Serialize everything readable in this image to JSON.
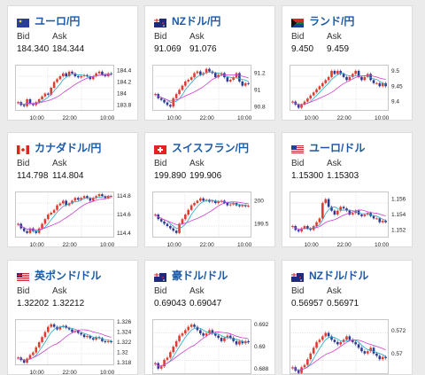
{
  "labels": {
    "bid": "Bid",
    "ask": "Ask"
  },
  "colors": {
    "title": "#1a5aa8",
    "up": "#e03c31",
    "down": "#2e3a8f",
    "ma_short": "#2aa6c4",
    "ma_long": "#cf3fcf",
    "grid": "#cfcfcf"
  },
  "cards": [
    {
      "title": "ユーロ/円",
      "flag": "eu-flag-icon",
      "bid": "184.340",
      "ask": "184.344",
      "chart_data": {
        "type": "candlestick",
        "x_ticks": [
          "10:00",
          "22:00",
          "10:00"
        ],
        "y_ticks": [
          "184.4",
          "184.2",
          "184",
          "183.8"
        ],
        "ylim": [
          183.7,
          184.5
        ],
        "close": [
          183.85,
          183.8,
          183.78,
          183.9,
          183.82,
          183.8,
          183.85,
          183.9,
          183.95,
          184.0,
          183.98,
          184.1,
          184.2,
          184.25,
          184.3,
          184.35,
          184.3,
          184.38,
          184.35,
          184.3,
          184.28,
          184.3,
          184.32,
          184.3,
          184.25,
          184.3,
          184.35,
          184.38,
          184.33,
          184.3,
          184.35,
          184.34
        ]
      }
    },
    {
      "title": "NZドル/円",
      "flag": "nz-flag-icon",
      "bid": "91.069",
      "ask": "91.076",
      "chart_data": {
        "type": "candlestick",
        "x_ticks": [
          "10:00",
          "22:00",
          "10:00"
        ],
        "y_ticks": [
          "91.2",
          "91",
          "90.8"
        ],
        "ylim": [
          90.75,
          91.3
        ],
        "close": [
          90.95,
          90.9,
          90.88,
          90.85,
          90.82,
          90.8,
          90.9,
          90.95,
          91.0,
          91.05,
          91.1,
          91.12,
          91.15,
          91.2,
          91.22,
          91.18,
          91.2,
          91.25,
          91.22,
          91.2,
          91.15,
          91.18,
          91.2,
          91.15,
          91.1,
          91.12,
          91.15,
          91.2,
          91.1,
          91.05,
          91.08,
          91.07
        ]
      }
    },
    {
      "title": "ランド/円",
      "flag": "za-flag-icon",
      "bid": "9.450",
      "ask": "9.459",
      "chart_data": {
        "type": "candlestick",
        "x_ticks": [
          "10:00",
          "22:00",
          "10:00"
        ],
        "y_ticks": [
          "9.5",
          "9.45",
          "9.4"
        ],
        "ylim": [
          9.37,
          9.52
        ],
        "close": [
          9.4,
          9.39,
          9.38,
          9.39,
          9.4,
          9.41,
          9.42,
          9.43,
          9.44,
          9.45,
          9.46,
          9.47,
          9.48,
          9.5,
          9.49,
          9.5,
          9.49,
          9.48,
          9.47,
          9.48,
          9.49,
          9.5,
          9.48,
          9.47,
          9.48,
          9.49,
          9.47,
          9.46,
          9.46,
          9.45,
          9.46,
          9.45
        ]
      }
    },
    {
      "title": "カナダドル/円",
      "flag": "ca-flag-icon",
      "bid": "114.798",
      "ask": "114.804",
      "chart_data": {
        "type": "candlestick",
        "x_ticks": [
          "10:00",
          "22:00",
          "10:00"
        ],
        "y_ticks": [
          "114.8",
          "114.6",
          "114.4"
        ],
        "ylim": [
          114.35,
          114.85
        ],
        "close": [
          114.5,
          114.45,
          114.42,
          114.4,
          114.45,
          114.42,
          114.4,
          114.45,
          114.5,
          114.55,
          114.6,
          114.62,
          114.65,
          114.7,
          114.72,
          114.75,
          114.7,
          114.72,
          114.75,
          114.78,
          114.76,
          114.78,
          114.8,
          114.78,
          114.75,
          114.78,
          114.8,
          114.82,
          114.8,
          114.78,
          114.8,
          114.8
        ]
      }
    },
    {
      "title": "スイスフラン/円",
      "flag": "ch-flag-icon",
      "bid": "199.890",
      "ask": "199.906",
      "chart_data": {
        "type": "candlestick",
        "x_ticks": [
          "10:00",
          "22:00",
          "10:00"
        ],
        "y_ticks": [
          "200",
          "199.5"
        ],
        "ylim": [
          199.2,
          200.2
        ],
        "close": [
          199.7,
          199.6,
          199.55,
          199.5,
          199.45,
          199.4,
          199.35,
          199.3,
          199.5,
          199.6,
          199.7,
          199.8,
          199.9,
          199.95,
          200.0,
          200.05,
          200.0,
          200.02,
          199.98,
          200.0,
          199.95,
          199.98,
          200.0,
          199.95,
          199.9,
          199.92,
          199.95,
          199.9,
          199.88,
          199.9,
          199.88,
          199.89
        ]
      }
    },
    {
      "title": "ユーロ/ドル",
      "flag": "eu-us-flag-icon",
      "bid": "1.15300",
      "ask": "1.15303",
      "chart_data": {
        "type": "candlestick",
        "x_ticks": [
          "10:00",
          "22:00",
          "10:00"
        ],
        "y_ticks": [
          "1.156",
          "1.154",
          "1.152"
        ],
        "ylim": [
          1.151,
          1.157
        ],
        "close": [
          1.1525,
          1.152,
          1.1518,
          1.1522,
          1.1525,
          1.1522,
          1.152,
          1.1525,
          1.153,
          1.1535,
          1.1555,
          1.156,
          1.155,
          1.1545,
          1.154,
          1.1545,
          1.155,
          1.1548,
          1.1545,
          1.154,
          1.1542,
          1.1545,
          1.154,
          1.1538,
          1.154,
          1.1542,
          1.1538,
          1.1535,
          1.1535,
          1.153,
          1.1532,
          1.153
        ]
      }
    },
    {
      "title": "英ポンド/ドル",
      "flag": "gb-us-flag-icon",
      "bid": "1.32202",
      "ask": "1.32212",
      "chart_data": {
        "type": "candlestick",
        "x_ticks": [
          "10:00",
          "22:00",
          "10:00"
        ],
        "y_ticks": [
          "1.326",
          "1.324",
          "1.322",
          "1.32",
          "1.318"
        ],
        "ylim": [
          1.3175,
          1.3265
        ],
        "close": [
          1.319,
          1.3185,
          1.318,
          1.3188,
          1.3195,
          1.32,
          1.321,
          1.322,
          1.323,
          1.324,
          1.325,
          1.3255,
          1.325,
          1.3245,
          1.325,
          1.3252,
          1.3248,
          1.3245,
          1.324,
          1.3242,
          1.3238,
          1.3235,
          1.323,
          1.3232,
          1.3228,
          1.3225,
          1.323,
          1.3228,
          1.3222,
          1.322,
          1.3222,
          1.322
        ]
      }
    },
    {
      "title": "豪ドル/ドル",
      "flag": "au-us-flag-icon",
      "bid": "0.69043",
      "ask": "0.69047",
      "chart_data": {
        "type": "candlestick",
        "x_ticks": [],
        "y_ticks": [
          "0.692",
          "0.69",
          "0.688"
        ],
        "ylim": [
          0.6875,
          0.6925
        ],
        "close": [
          0.6885,
          0.688,
          0.6882,
          0.6888,
          0.689,
          0.6895,
          0.69,
          0.6905,
          0.691,
          0.6912,
          0.6915,
          0.6918,
          0.692,
          0.6918,
          0.6915,
          0.6912,
          0.691,
          0.6912,
          0.6915,
          0.6912,
          0.691,
          0.6908,
          0.6905,
          0.6908,
          0.691,
          0.6908,
          0.6905,
          0.6902,
          0.6905,
          0.6903,
          0.6905,
          0.6904
        ]
      }
    },
    {
      "title": "NZドル/ドル",
      "flag": "nz-us-flag-icon",
      "bid": "0.56957",
      "ask": "0.56971",
      "chart_data": {
        "type": "candlestick",
        "x_ticks": [],
        "y_ticks": [
          "0.572",
          "0.57"
        ],
        "ylim": [
          0.5682,
          0.573
        ],
        "close": [
          0.5688,
          0.5685,
          0.5683,
          0.5688,
          0.569,
          0.5695,
          0.57,
          0.5705,
          0.571,
          0.5712,
          0.5715,
          0.5718,
          0.5715,
          0.5712,
          0.571,
          0.5708,
          0.571,
          0.5712,
          0.5715,
          0.5712,
          0.571,
          0.5708,
          0.5705,
          0.5702,
          0.57,
          0.5702,
          0.5705,
          0.57,
          0.5698,
          0.5695,
          0.5697,
          0.5696
        ]
      }
    }
  ]
}
